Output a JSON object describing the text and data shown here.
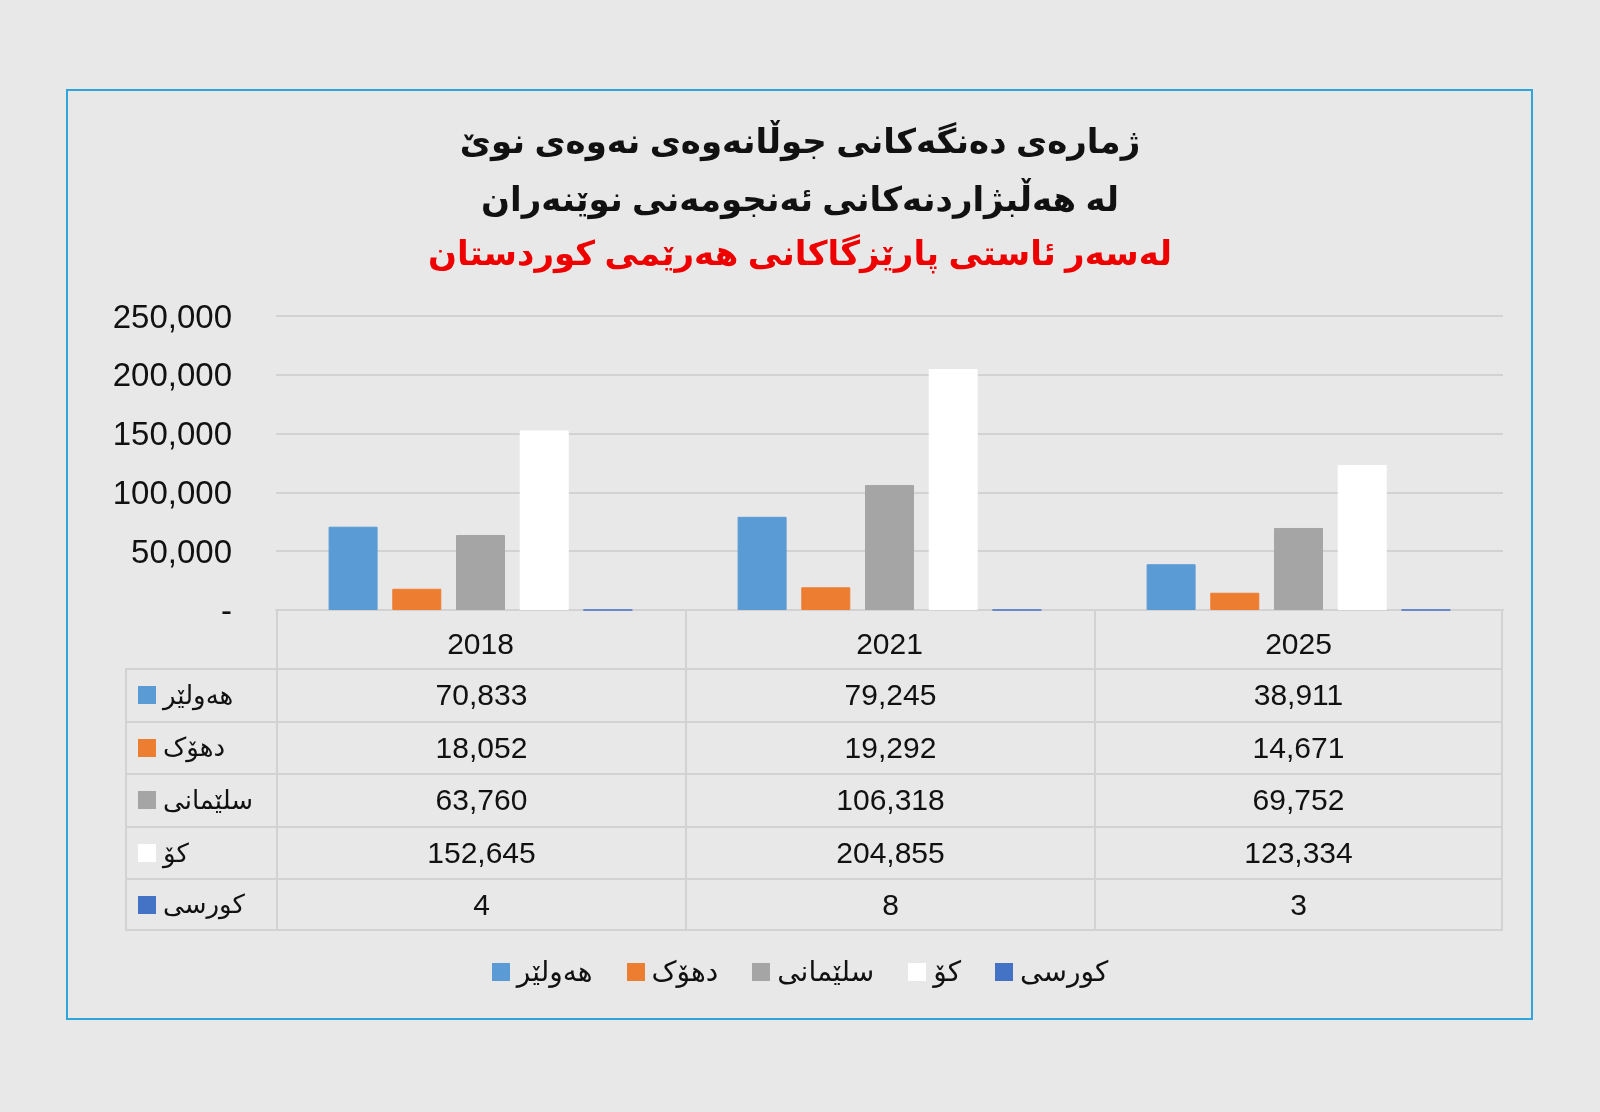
{
  "chart_data": {
    "type": "bar",
    "title": "ژمارەی دەنگەکانی جوڵانەوەی نەوەی نوێ\nلە هەڵبژاردنەکانی ئەنجومەنی نوێنەران",
    "subtitle": "لەسەر ئاستی پارێزگاکانی هەرێمی کوردستان",
    "categories": [
      "2018",
      "2021",
      "2025"
    ],
    "series": [
      {
        "name": "هەولێر",
        "color": "#5b9bd5",
        "values": [
          70833,
          79245,
          38911
        ],
        "value_labels": [
          "70,833",
          "79,245",
          "38,911"
        ]
      },
      {
        "name": "دهۆک",
        "color": "#ed7d31",
        "values": [
          18052,
          19292,
          14671
        ],
        "value_labels": [
          "18,052",
          "19,292",
          "14,671"
        ]
      },
      {
        "name": "سلێمانی",
        "color": "#a5a5a5",
        "values": [
          63760,
          106318,
          69752
        ],
        "value_labels": [
          "63,760",
          "106,318",
          "69,752"
        ]
      },
      {
        "name": "کۆ",
        "color": "#ffffff",
        "values": [
          152645,
          204855,
          123334
        ],
        "value_labels": [
          "152,645",
          "204,855",
          "123,334"
        ]
      },
      {
        "name": "کورسی",
        "color": "#4472c4",
        "values": [
          4,
          8,
          3
        ],
        "value_labels": [
          "4",
          "8",
          "3"
        ]
      }
    ],
    "ylim": [
      0,
      250000
    ],
    "yticks": [
      {
        "value": 0,
        "label": "-"
      },
      {
        "value": 50000,
        "label": "50,000"
      },
      {
        "value": 100000,
        "label": "100,000"
      },
      {
        "value": 150000,
        "label": "150,000"
      },
      {
        "value": 200000,
        "label": "200,000"
      },
      {
        "value": 250000,
        "label": "250,000"
      }
    ],
    "grid": "y",
    "legend": "bottom"
  }
}
